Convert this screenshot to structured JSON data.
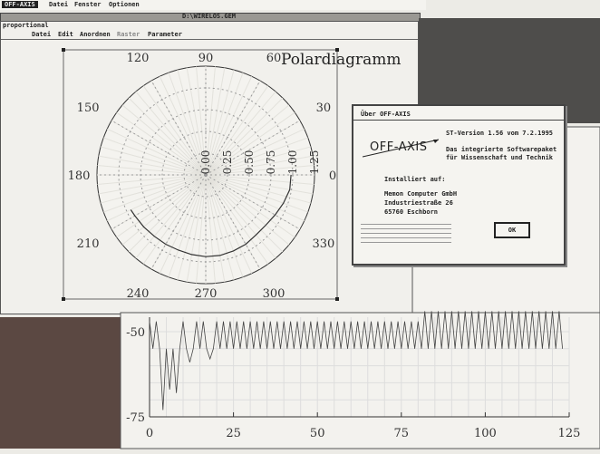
{
  "menubar": {
    "app": "OFF-AXIS",
    "items": [
      "Datei",
      "Fenster",
      "Optionen"
    ]
  },
  "window": {
    "title": "D:\\WIRELOS.GEM",
    "mode": "proportional",
    "menu": [
      "Datei",
      "Edit",
      "Anordnen",
      "Raster",
      "Parameter"
    ]
  },
  "polar_title": "Polardiagramm",
  "dialog": {
    "title": "Über OFF-AXIS",
    "logo": "OFF-AXIS",
    "version": "ST-Version 1.56 vom 7.2.1995",
    "tagline1": "Das integrierte Softwarepaket",
    "tagline2": "für Wissenschaft und Technik",
    "installed_label": "Installiert auf:",
    "company": "Memon Computer GmbH",
    "street": "Industriestraße 26",
    "city": "65760 Eschborn",
    "ok_label": "OK"
  },
  "chart_data": [
    {
      "type": "polar",
      "title": "Polardiagramm",
      "angle_ticks": [
        "0",
        "30",
        "60",
        "90",
        "120",
        "150",
        "180",
        "210",
        "240",
        "270",
        "300",
        "330"
      ],
      "radial_ticks": [
        "0.00",
        "0.25",
        "0.50",
        "0.75",
        "1.00",
        "1.25"
      ],
      "rlim": [
        0,
        1.25
      ],
      "grid": true,
      "series": [
        {
          "theta": [
            205,
            210,
            220,
            230,
            240,
            250,
            260,
            270,
            280,
            290,
            300,
            310,
            320,
            330,
            340,
            350,
            360
          ],
          "r": [
            0.95,
            0.94,
            0.93,
            0.92,
            0.92,
            0.92,
            0.93,
            0.94,
            0.94,
            0.93,
            0.92,
            0.9,
            0.9,
            0.92,
            0.95,
            0.98,
            0.98
          ]
        }
      ]
    },
    {
      "type": "line",
      "x_ticks": [
        "0",
        "25",
        "50",
        "75",
        "100",
        "125"
      ],
      "y_ticks": [
        "-50",
        "-75"
      ],
      "xlim": [
        0,
        125
      ],
      "ylim": [
        -75,
        -46
      ],
      "grid": true,
      "spikes": [
        {
          "x": 4,
          "y": -73
        },
        {
          "x": 6,
          "y": -67
        },
        {
          "x": 8,
          "y": -68
        },
        {
          "x": 12,
          "y": -59
        },
        {
          "x": 18,
          "y": -58
        }
      ],
      "period": 2,
      "peak_early": -47,
      "peak_late": -44,
      "peak_change_x": 80,
      "trough": -55,
      "x_end": 123
    }
  ]
}
